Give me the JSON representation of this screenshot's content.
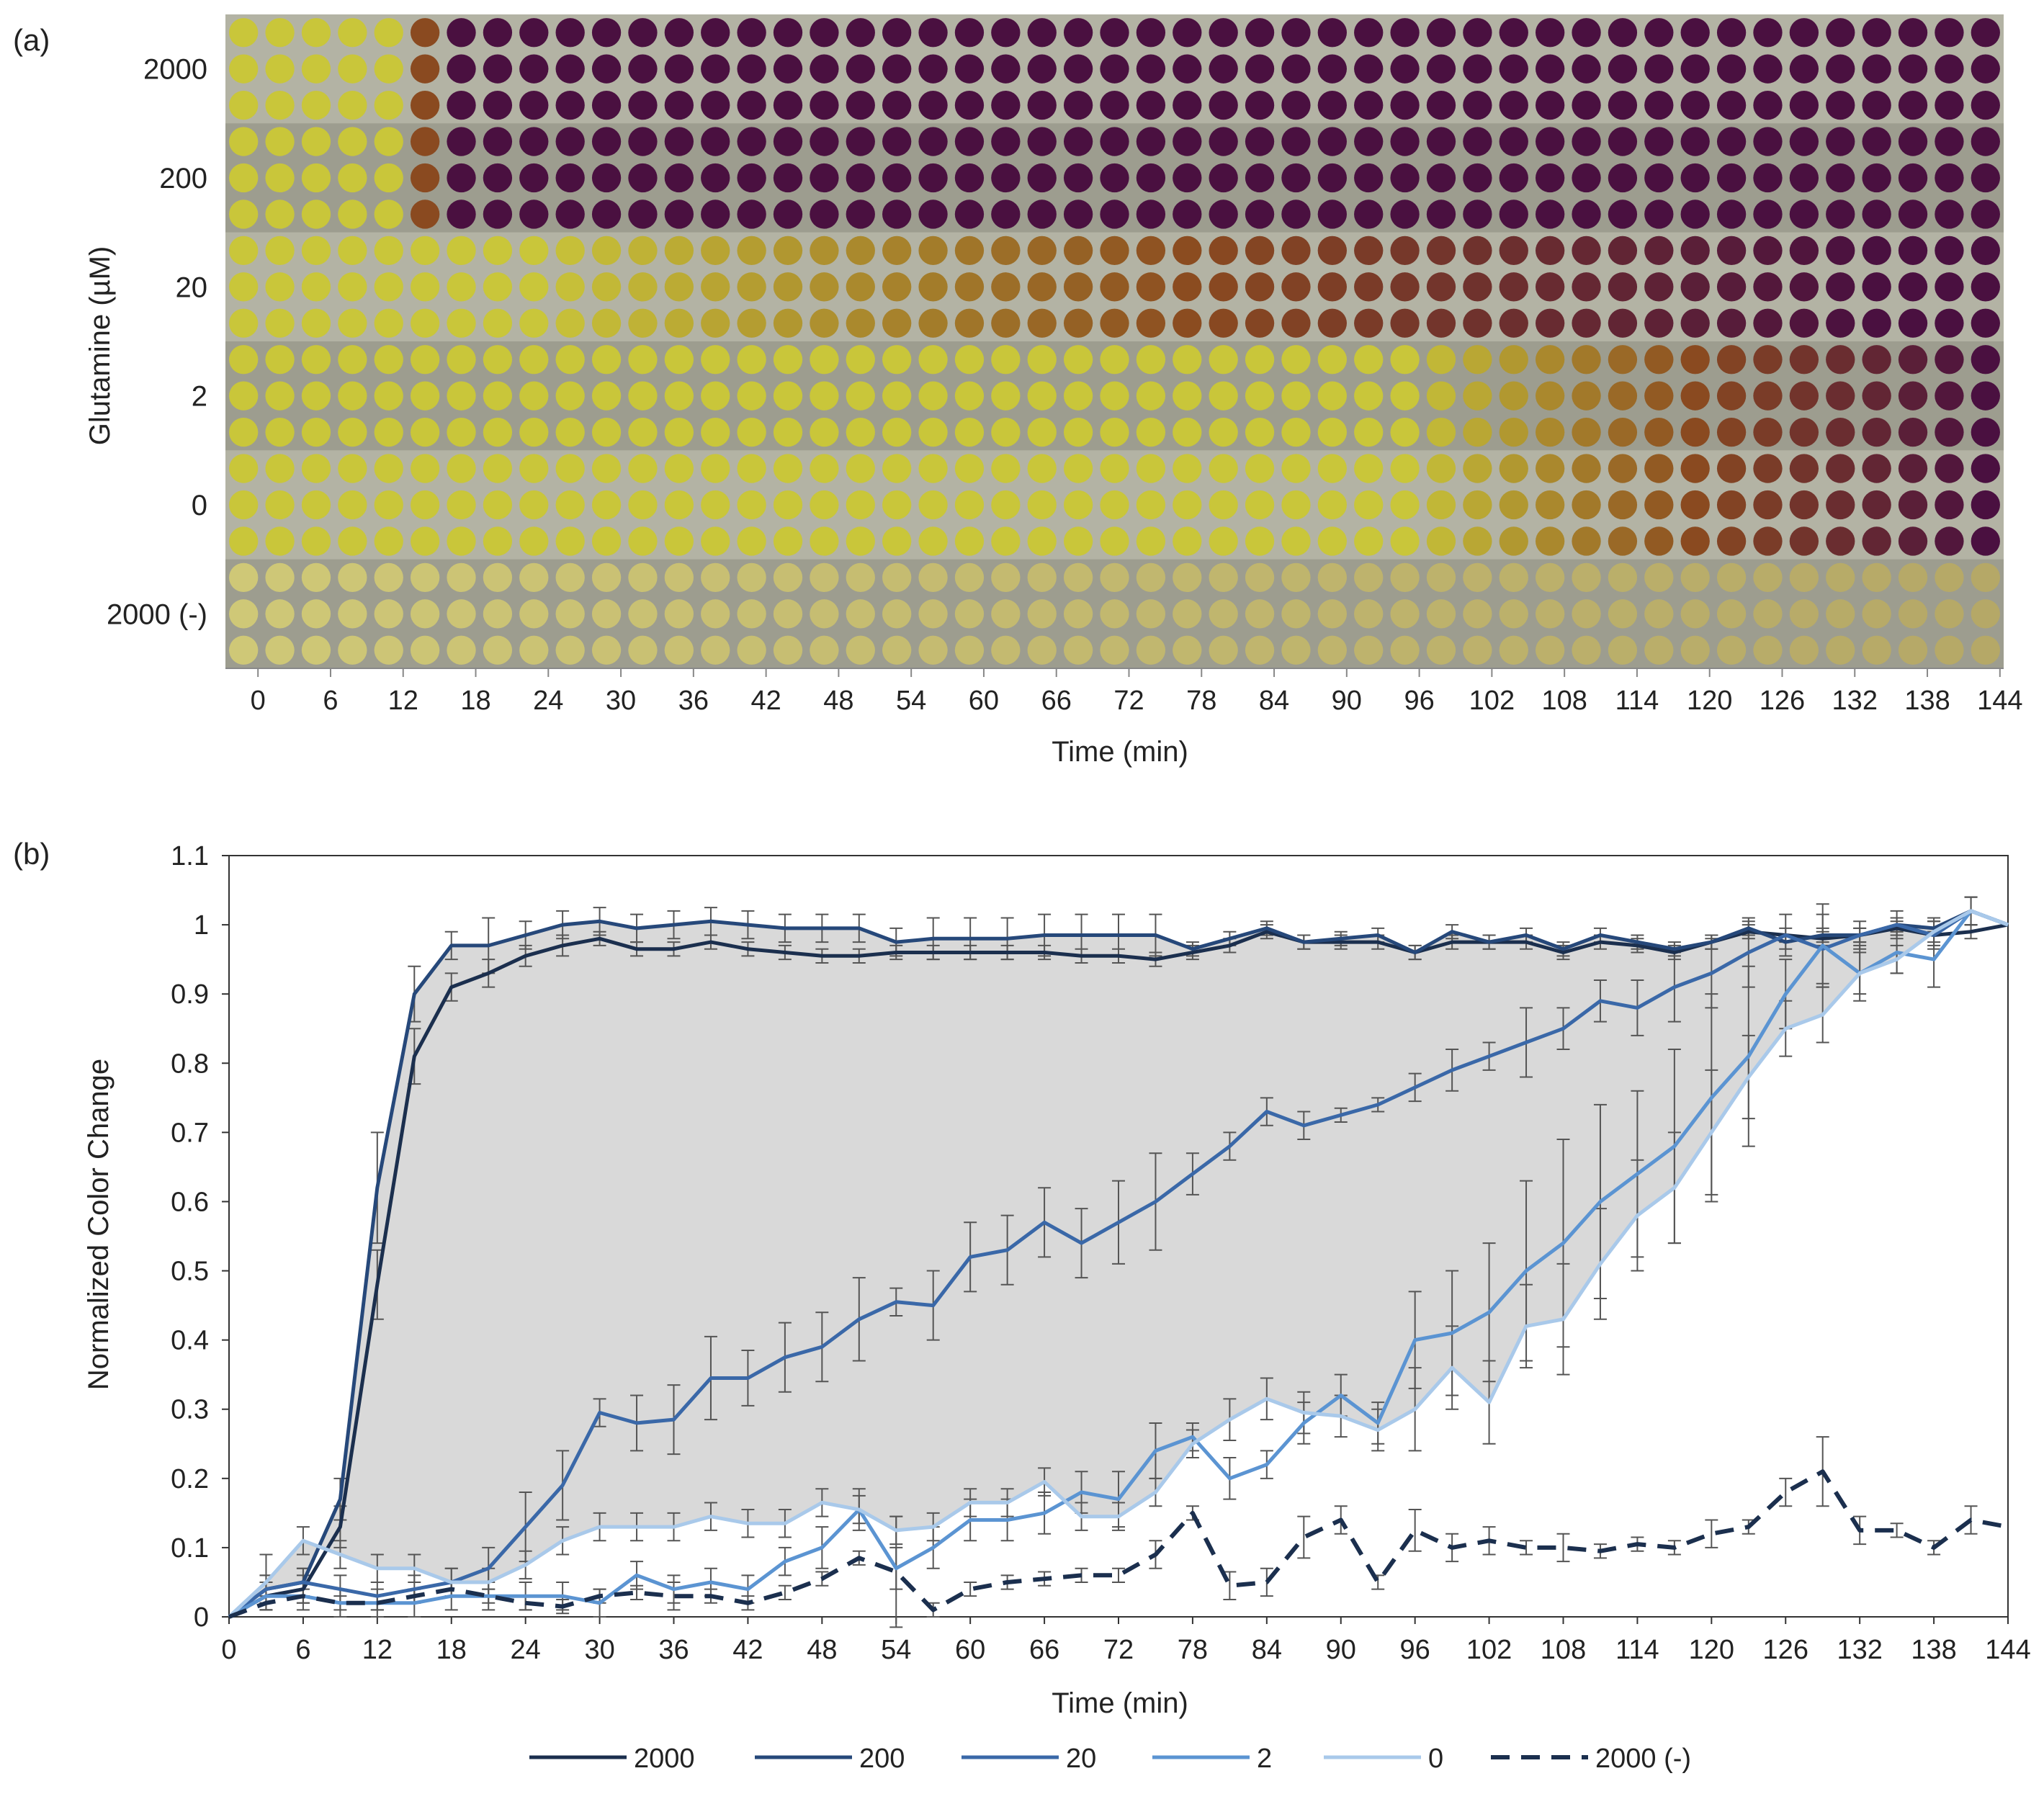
{
  "panel_a": {
    "label": "(a)",
    "ylabel": "Glutamine (µM)",
    "xlabel": "Time (min)",
    "row_groups": [
      "2000",
      "200",
      "20",
      "2",
      "0",
      "2000 (-)"
    ],
    "x_ticks": [
      "0",
      "6",
      "12",
      "18",
      "24",
      "30",
      "36",
      "42",
      "48",
      "54",
      "60",
      "66",
      "72",
      "78",
      "84",
      "90",
      "96",
      "102",
      "108",
      "114",
      "120",
      "126",
      "132",
      "138",
      "144"
    ],
    "time_points_per_row": 49,
    "wells_per_group": 3,
    "colors": {
      "yellow": "#c9c63a",
      "purple": "#4a1040",
      "brown": "#8a4a20",
      "pale_yellow": "#cfc877",
      "background": "#a9a99a"
    },
    "color_change_start_min": {
      "2000": 12,
      "200": 12,
      "20": 24,
      "2": 96,
      "0": 96,
      "2000 (-)": null
    }
  },
  "panel_b": {
    "label": "(b)"
  },
  "chart_data": {
    "type": "line",
    "title": "",
    "xlabel": "Time (min)",
    "ylabel": "Normalized Color Change",
    "xlim": [
      0,
      144
    ],
    "ylim": [
      0,
      1.1
    ],
    "x_ticks": [
      0,
      6,
      12,
      18,
      24,
      30,
      36,
      42,
      48,
      54,
      60,
      66,
      72,
      78,
      84,
      90,
      96,
      102,
      108,
      114,
      120,
      126,
      132,
      138,
      144
    ],
    "y_ticks": [
      0,
      0.1,
      0.2,
      0.3,
      0.4,
      0.5,
      0.6,
      0.7,
      0.8,
      0.9,
      1,
      1.1
    ],
    "y_tick_labels": [
      "0",
      "0.1",
      "0.2",
      "0.3",
      "0.4",
      "0.5",
      "0.6",
      "0.7",
      "0.8",
      "0.9",
      "1",
      "1.1"
    ],
    "grid": false,
    "legend_position": "bottom",
    "shaded_band": {
      "upper_series": "200",
      "lower_series": "0",
      "color": "#d9d9d9"
    },
    "x": [
      0,
      3,
      6,
      9,
      12,
      15,
      18,
      21,
      24,
      27,
      30,
      33,
      36,
      39,
      42,
      45,
      48,
      51,
      54,
      57,
      60,
      63,
      66,
      69,
      72,
      75,
      78,
      81,
      84,
      87,
      90,
      93,
      96,
      99,
      102,
      105,
      108,
      111,
      114,
      117,
      120,
      123,
      126,
      129,
      132,
      135,
      138,
      141,
      144
    ],
    "series": [
      {
        "name": "2000",
        "color": "#1b2f4e",
        "dash": false,
        "values": [
          0,
          0.03,
          0.04,
          0.13,
          0.48,
          0.81,
          0.91,
          0.93,
          0.955,
          0.97,
          0.98,
          0.965,
          0.965,
          0.975,
          0.965,
          0.96,
          0.955,
          0.955,
          0.96,
          0.96,
          0.96,
          0.96,
          0.96,
          0.955,
          0.955,
          0.95,
          0.96,
          0.97,
          0.99,
          0.975,
          0.975,
          0.975,
          0.96,
          0.975,
          0.975,
          0.975,
          0.96,
          0.975,
          0.97,
          0.96,
          0.975,
          0.99,
          0.985,
          0.98,
          0.985,
          0.995,
          0.985,
          0.99,
          1
        ],
        "errors": [
          0,
          0.02,
          0.02,
          0.03,
          0.05,
          0.04,
          0.02,
          0.02,
          0.015,
          0.015,
          0.01,
          0.01,
          0.01,
          0.01,
          0.01,
          0.01,
          0.01,
          0.01,
          0.01,
          0.01,
          0.01,
          0.01,
          0.01,
          0.01,
          0.01,
          0.01,
          0.01,
          0.01,
          0.01,
          0.01,
          0.01,
          0.01,
          0.01,
          0.01,
          0.01,
          0.01,
          0.01,
          0.01,
          0.01,
          0.01,
          0.01,
          0.01,
          0.01,
          0.01,
          0.01,
          0.01,
          0.01,
          0.01,
          0
        ]
      },
      {
        "name": "200",
        "color": "#26487a",
        "dash": false,
        "values": [
          0,
          0.04,
          0.05,
          0.17,
          0.62,
          0.9,
          0.97,
          0.97,
          0.985,
          1,
          1.005,
          0.995,
          1,
          1.005,
          1,
          0.995,
          0.995,
          0.995,
          0.975,
          0.98,
          0.98,
          0.98,
          0.985,
          0.985,
          0.985,
          0.985,
          0.965,
          0.98,
          0.995,
          0.975,
          0.98,
          0.985,
          0.96,
          0.99,
          0.975,
          0.985,
          0.965,
          0.985,
          0.975,
          0.965,
          0.975,
          0.995,
          0.975,
          0.985,
          0.985,
          1,
          0.995,
          1.02,
          1
        ],
        "errors": [
          0,
          0.02,
          0.02,
          0.03,
          0.08,
          0.04,
          0.02,
          0.04,
          0.02,
          0.02,
          0.02,
          0.02,
          0.02,
          0.02,
          0.02,
          0.02,
          0.02,
          0.02,
          0.02,
          0.03,
          0.03,
          0.03,
          0.03,
          0.03,
          0.03,
          0.03,
          0.01,
          0.01,
          0.01,
          0.01,
          0.01,
          0.01,
          0.01,
          0.01,
          0.01,
          0.01,
          0.01,
          0.01,
          0.01,
          0.01,
          0.01,
          0.01,
          0.01,
          0.01,
          0.01,
          0.01,
          0.01,
          0.02,
          0
        ]
      },
      {
        "name": "20",
        "color": "#3a68a8",
        "dash": false,
        "values": [
          0,
          0.04,
          0.05,
          0.04,
          0.03,
          0.04,
          0.05,
          0.07,
          0.13,
          0.19,
          0.295,
          0.28,
          0.285,
          0.345,
          0.345,
          0.375,
          0.39,
          0.43,
          0.455,
          0.45,
          0.52,
          0.53,
          0.57,
          0.54,
          0.57,
          0.6,
          0.64,
          0.68,
          0.73,
          0.71,
          0.725,
          0.74,
          0.765,
          0.79,
          0.81,
          0.83,
          0.85,
          0.89,
          0.88,
          0.91,
          0.93,
          0.96,
          0.985,
          0.965,
          0.985,
          1,
          0.985,
          1.02,
          1
        ],
        "errors": [
          0,
          0.02,
          0.02,
          0.02,
          0.02,
          0.02,
          0.02,
          0.03,
          0.05,
          0.05,
          0.02,
          0.04,
          0.05,
          0.06,
          0.04,
          0.05,
          0.05,
          0.06,
          0.02,
          0.05,
          0.05,
          0.05,
          0.05,
          0.05,
          0.06,
          0.07,
          0.03,
          0.02,
          0.02,
          0.02,
          0.01,
          0.01,
          0.02,
          0.03,
          0.02,
          0.05,
          0.03,
          0.03,
          0.04,
          0.05,
          0.05,
          0.05,
          0.03,
          0.05,
          0.02,
          0.02,
          0.02,
          0.02,
          0
        ]
      },
      {
        "name": "2",
        "color": "#5b94d2",
        "dash": false,
        "values": [
          0,
          0.03,
          0.03,
          0.02,
          0.02,
          0.02,
          0.03,
          0.03,
          0.03,
          0.03,
          0.02,
          0.06,
          0.04,
          0.05,
          0.04,
          0.08,
          0.1,
          0.155,
          0.07,
          0.1,
          0.14,
          0.14,
          0.15,
          0.18,
          0.17,
          0.24,
          0.26,
          0.2,
          0.22,
          0.28,
          0.32,
          0.28,
          0.4,
          0.41,
          0.44,
          0.5,
          0.54,
          0.6,
          0.64,
          0.68,
          0.75,
          0.81,
          0.9,
          0.97,
          0.93,
          0.96,
          0.95,
          1.02,
          1
        ],
        "errors": [
          0,
          0.02,
          0.02,
          0.02,
          0.02,
          0.02,
          0.02,
          0.02,
          0.02,
          0.02,
          0.02,
          0.02,
          0.02,
          0.02,
          0.02,
          0.02,
          0.03,
          0.03,
          0.03,
          0.03,
          0.03,
          0.03,
          0.03,
          0.03,
          0.04,
          0.04,
          0.02,
          0.03,
          0.02,
          0.03,
          0.03,
          0.03,
          0.07,
          0.09,
          0.1,
          0.13,
          0.15,
          0.14,
          0.12,
          0.14,
          0.15,
          0.13,
          0.05,
          0.06,
          0.04,
          0.03,
          0.04,
          0.02,
          0
        ]
      },
      {
        "name": "0",
        "color": "#a9c9ea",
        "dash": false,
        "values": [
          0,
          0.05,
          0.11,
          0.09,
          0.07,
          0.07,
          0.05,
          0.05,
          0.075,
          0.11,
          0.13,
          0.13,
          0.13,
          0.145,
          0.135,
          0.135,
          0.165,
          0.155,
          0.125,
          0.13,
          0.165,
          0.165,
          0.195,
          0.145,
          0.145,
          0.18,
          0.25,
          0.285,
          0.315,
          0.295,
          0.29,
          0.27,
          0.3,
          0.36,
          0.31,
          0.42,
          0.43,
          0.51,
          0.58,
          0.62,
          0.7,
          0.78,
          0.85,
          0.87,
          0.93,
          0.95,
          0.99,
          1.02,
          1
        ],
        "errors": [
          0,
          0.04,
          0.02,
          0.02,
          0.02,
          0.02,
          0.02,
          0.02,
          0.02,
          0.02,
          0.02,
          0.02,
          0.02,
          0.02,
          0.02,
          0.02,
          0.02,
          0.02,
          0.02,
          0.02,
          0.02,
          0.02,
          0.02,
          0.02,
          0.02,
          0.02,
          0.02,
          0.03,
          0.03,
          0.03,
          0.03,
          0.03,
          0.06,
          0.06,
          0.06,
          0.06,
          0.08,
          0.08,
          0.08,
          0.08,
          0.09,
          0.06,
          0.04,
          0.04,
          0.03,
          0.02,
          0.02,
          0.02,
          0
        ]
      },
      {
        "name": "2000 (-)",
        "color": "#1b2f4e",
        "dash": true,
        "values": [
          0,
          0.02,
          0.03,
          0.02,
          0.02,
          0.03,
          0.04,
          0.03,
          0.02,
          0.015,
          0.03,
          0.035,
          0.03,
          0.03,
          0.02,
          0.035,
          0.055,
          0.085,
          0.065,
          0.01,
          0.04,
          0.05,
          0.055,
          0.06,
          0.06,
          0.09,
          0.15,
          0.045,
          0.05,
          0.115,
          0.14,
          0.05,
          0.125,
          0.1,
          0.11,
          0.1,
          0.1,
          0.095,
          0.105,
          0.1,
          0.12,
          0.13,
          0.18,
          0.21,
          0.125,
          0.125,
          0.1,
          0.14,
          0.13
        ],
        "errors": [
          0,
          0.01,
          0.01,
          0.01,
          0.01,
          0.01,
          0.01,
          0.01,
          0.01,
          0.01,
          0.01,
          0.01,
          0.02,
          0.01,
          0.01,
          0.01,
          0.01,
          0.01,
          0.08,
          0.01,
          0.01,
          0.01,
          0.01,
          0.01,
          0.01,
          0.02,
          0.01,
          0.02,
          0.02,
          0.03,
          0.02,
          0.01,
          0.03,
          0.02,
          0.02,
          0.01,
          0.02,
          0.01,
          0.01,
          0.01,
          0.02,
          0.01,
          0.02,
          0.05,
          0.02,
          0.01,
          0.01,
          0.02,
          0
        ]
      }
    ]
  }
}
